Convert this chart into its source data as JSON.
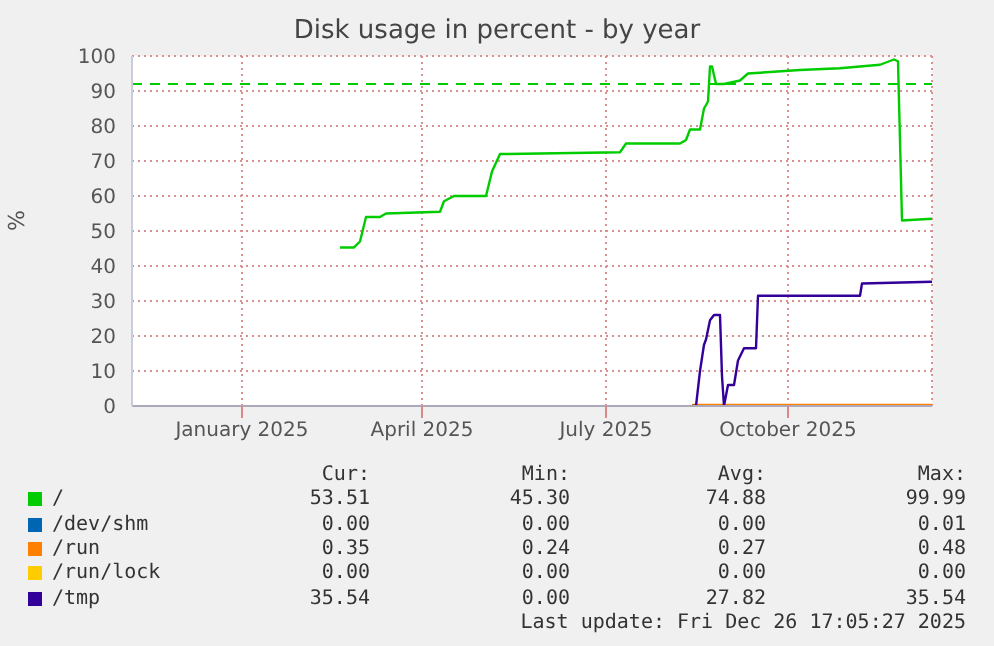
{
  "chart_data": {
    "type": "line",
    "title": "Disk usage in percent - by year",
    "ylabel": "%",
    "xlim": [
      "2024-11-22",
      "2025-12-27"
    ],
    "xticks": [
      {
        "value": "2025-01-16",
        "label": "January 2025"
      },
      {
        "value": "2025-04-16",
        "label": "April 2025"
      },
      {
        "value": "2025-07-17",
        "label": "July 2025"
      },
      {
        "value": "2025-10-16",
        "label": "October 2025"
      }
    ],
    "ylim": [
      0,
      100
    ],
    "yticks": [
      0,
      10,
      20,
      30,
      40,
      50,
      60,
      70,
      80,
      90,
      100
    ],
    "grid": true,
    "legend": "bottom",
    "marker": "none",
    "line_style": "solid",
    "ref_lines": [
      {
        "axis": "y",
        "value": 92,
        "color": "#00cc00",
        "line_style": "dashed"
      }
    ],
    "series": [
      {
        "name": "/",
        "color": "#00cc00",
        "x": [
          "2025-03-06",
          "2025-03-13",
          "2025-03-16",
          "2025-03-19",
          "2025-03-26",
          "2025-03-29",
          "2025-04-25",
          "2025-04-27",
          "2025-05-02",
          "2025-05-18",
          "2025-05-21",
          "2025-05-25",
          "2025-05-28",
          "2025-07-24",
          "2025-07-27",
          "2025-08-23",
          "2025-08-26",
          "2025-08-28",
          "2025-09-02",
          "2025-09-04",
          "2025-09-06",
          "2025-09-07",
          "2025-09-08",
          "2025-09-10",
          "2025-09-14",
          "2025-09-18",
          "2025-09-22",
          "2025-09-26",
          "2025-10-22",
          "2025-11-11",
          "2025-12-01",
          "2025-12-08",
          "2025-12-10",
          "2025-12-12",
          "2025-12-27"
        ],
        "values": [
          45.3,
          45.3,
          47,
          54,
          54,
          55,
          55.5,
          58.5,
          60,
          60,
          67,
          72,
          72,
          72.5,
          75,
          75,
          76,
          79,
          79,
          85,
          87,
          97,
          97,
          92,
          92,
          92.5,
          93,
          95,
          96,
          96.5,
          97.5,
          99,
          98.5,
          53,
          53.5
        ]
      },
      {
        "name": "/dev/shm",
        "color": "#0066b3"
      },
      {
        "name": "/run",
        "color": "#ff8000",
        "x": [
          "2025-08-29",
          "2025-12-27"
        ],
        "values": [
          0.3,
          0.3
        ]
      },
      {
        "name": "/run/lock",
        "color": "#ffcc00"
      },
      {
        "name": "/tmp",
        "color": "#330099",
        "x": [
          "2025-08-29",
          "2025-08-31",
          "2025-09-02",
          "2025-09-04",
          "2025-09-05",
          "2025-09-07",
          "2025-09-09",
          "2025-09-12",
          "2025-09-13",
          "2025-09-14",
          "2025-09-16",
          "2025-09-19",
          "2025-09-21",
          "2025-09-24",
          "2025-09-30",
          "2025-10-01",
          "2025-11-21",
          "2025-11-22",
          "2025-12-27"
        ],
        "values": [
          0,
          0,
          10,
          17.5,
          19,
          24.5,
          26,
          26,
          8.5,
          0,
          6,
          6,
          13,
          16.5,
          16.5,
          31.5,
          31.5,
          35,
          35.5
        ]
      }
    ],
    "annotations": [
      "Cur:",
      "Min:",
      "Avg:",
      "Max:",
      "53.51",
      "45.30",
      "74.88",
      "99.99",
      "0.00",
      "0.00",
      "0.00",
      "0.01",
      "0.35",
      "0.24",
      "0.27",
      "0.48",
      "0.00",
      "0.00",
      "0.00",
      "0.00",
      "35.54",
      "0.00",
      "27.82",
      "35.54",
      "Last update: Fri Dec 26 17:05:27 2025"
    ]
  }
}
